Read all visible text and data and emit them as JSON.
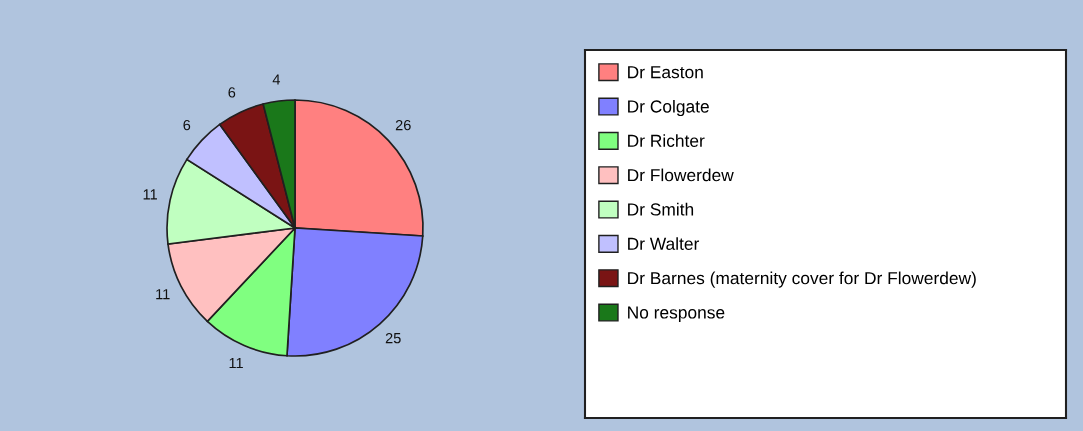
{
  "chart_data": {
    "type": "pie",
    "categories": [
      "Dr Easton",
      "Dr Colgate",
      "Dr Richter",
      "Dr Flowerdew",
      "Dr Smith",
      "Dr Walter",
      "Dr Barnes (maternity cover for Dr Flowerdew)",
      "No response"
    ],
    "values": [
      26,
      25,
      11,
      11,
      11,
      6,
      6,
      4
    ],
    "colors": [
      "#ff8080",
      "#8080ff",
      "#80ff80",
      "#ffc0c0",
      "#c0ffc0",
      "#c0c0ff",
      "#7a1414",
      "#1a781a"
    ],
    "data_labels": true,
    "legend": "right"
  }
}
